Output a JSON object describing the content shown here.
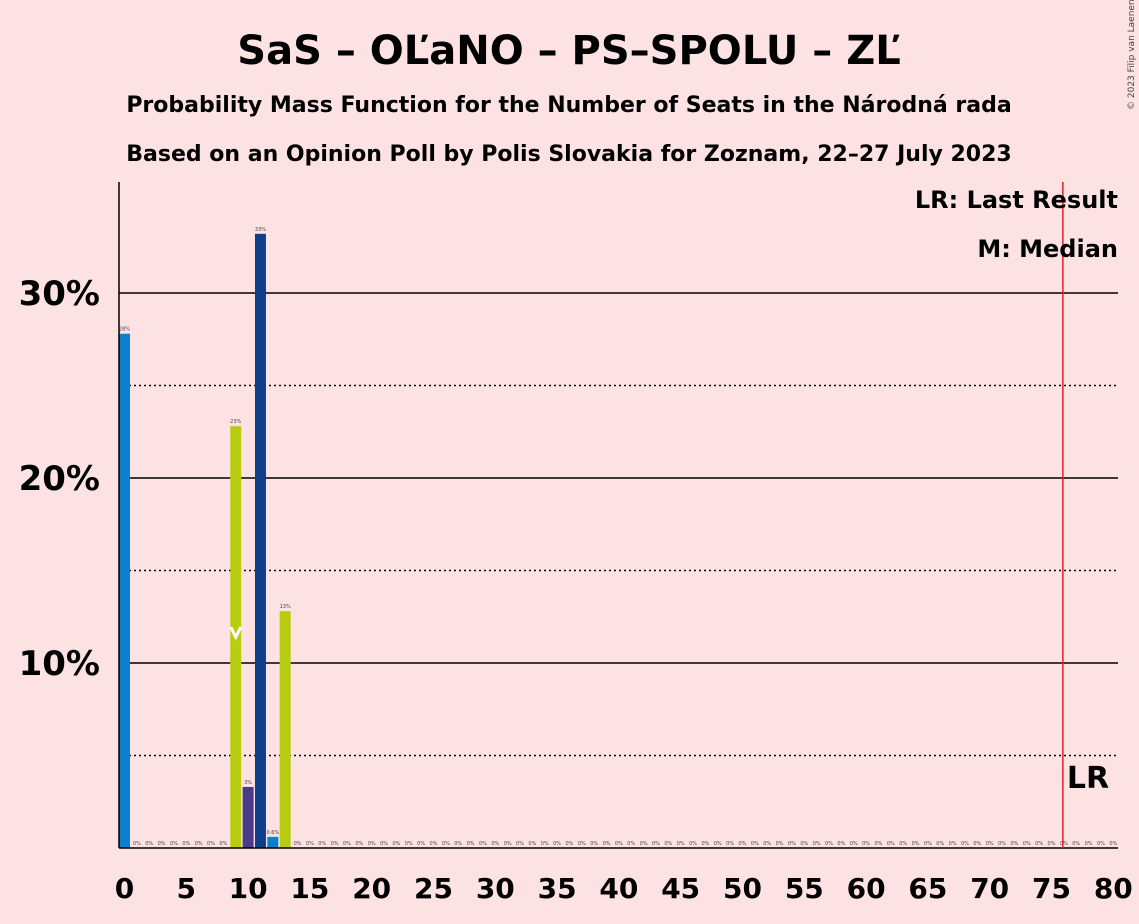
{
  "chart_data": {
    "type": "bar",
    "title": "SaS – OĽaNO – PS–SPOLU – ZĽ",
    "subtitle1": "Probability Mass Function for the Number of Seats in the Národná rada",
    "subtitle2": "Based on an Opinion Poll by Polis Slovakia for Zoznam, 22–27 July 2023",
    "copyright": "© 2023 Filip van Laenen",
    "legend": {
      "lr": "LR: Last Result",
      "m": "M: Median",
      "placement": "top-right"
    },
    "lr_label": "LR",
    "xlim": [
      0,
      80
    ],
    "ylim": [
      0,
      36
    ],
    "yticks": [
      {
        "value": 10,
        "label": "10%"
      },
      {
        "value": 20,
        "label": "20%"
      },
      {
        "value": 30,
        "label": "30%"
      }
    ],
    "minor_gridlines": [
      5,
      15,
      25
    ],
    "xticks": [
      0,
      5,
      10,
      15,
      20,
      25,
      30,
      35,
      40,
      45,
      50,
      55,
      60,
      65,
      70,
      75,
      80
    ],
    "last_result": 76,
    "median": 9,
    "colors": {
      "blue": "#0b80d0",
      "yellow": "#b8cd10",
      "purple": "#4a3a8a",
      "navy": "#0f3f8a",
      "lr": "#e01e2a",
      "grid": "#000000"
    },
    "bars": [
      {
        "x": 0,
        "value": 27.8,
        "label": "28%",
        "color": "blue"
      },
      {
        "x": 9,
        "value": 22.8,
        "label": "23%",
        "color": "yellow"
      },
      {
        "x": 10,
        "value": 3.3,
        "label": "3%",
        "color": "purple"
      },
      {
        "x": 11,
        "value": 33.2,
        "label": "33%",
        "color": "navy"
      },
      {
        "x": 12,
        "value": 0.6,
        "label": "0.6%",
        "color": "blue"
      },
      {
        "x": 13,
        "value": 12.8,
        "label": "13%",
        "color": "yellow"
      }
    ],
    "zero_label": "0%"
  }
}
